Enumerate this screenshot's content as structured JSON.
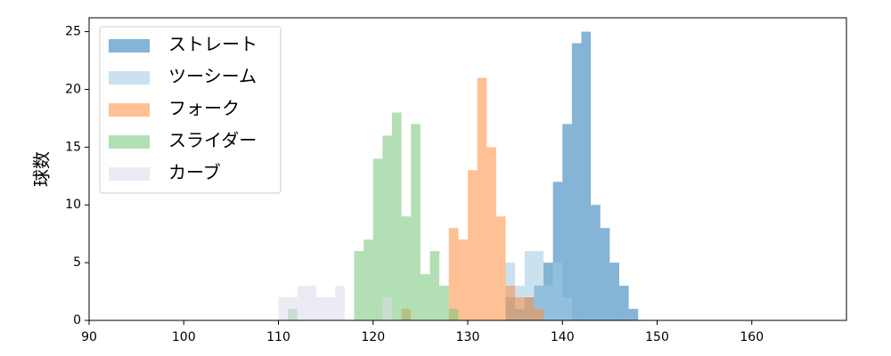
{
  "chart_data": {
    "type": "histogram",
    "ylabel": "球数",
    "xlim": [
      90,
      170
    ],
    "ylim": [
      0,
      26.2
    ],
    "xticks": [
      90,
      100,
      110,
      120,
      130,
      140,
      150,
      160
    ],
    "yticks": [
      0,
      5,
      10,
      15,
      20,
      25
    ],
    "legend": "upper left",
    "opacity": 0.55,
    "series": [
      {
        "name": "ストレート",
        "color": "#1f77b4",
        "bins": [
          134,
          135,
          136,
          137,
          138,
          139,
          140,
          141,
          142,
          143,
          144,
          145,
          146,
          147,
          148
        ],
        "values": [
          2,
          1,
          2,
          3,
          5,
          12,
          17,
          24,
          25,
          10,
          8,
          5,
          3,
          1
        ]
      },
      {
        "name": "ツーシーム",
        "color": "#9ecae1",
        "bins": [
          134,
          135,
          136,
          137,
          138,
          139,
          140,
          141
        ],
        "values": [
          5,
          3,
          6,
          6,
          3,
          5,
          2
        ]
      },
      {
        "name": "フォーク",
        "color": "#fd8d3c",
        "bins": [
          123,
          124,
          125,
          126,
          127,
          128,
          129,
          130,
          131,
          132,
          133,
          134,
          135,
          136,
          137,
          138
        ],
        "values": [
          1,
          0,
          0,
          0,
          0,
          8,
          7,
          13,
          21,
          15,
          9,
          3,
          2,
          2,
          1
        ]
      },
      {
        "name": "スライダー",
        "color": "#74c476",
        "bins": [
          111,
          112,
          113,
          114,
          115,
          116,
          117,
          118,
          119,
          120,
          121,
          122,
          123,
          124,
          125,
          126,
          127,
          128,
          129
        ],
        "values": [
          1,
          0,
          0,
          0,
          0,
          0,
          0,
          6,
          7,
          14,
          16,
          18,
          9,
          17,
          4,
          6,
          3,
          1
        ]
      },
      {
        "name": "カーブ",
        "color": "#dadaeb",
        "bins": [
          110,
          111,
          112,
          113,
          114,
          115,
          116,
          117,
          118,
          119,
          120,
          121,
          122
        ],
        "values": [
          2,
          2,
          3,
          3,
          2,
          2,
          3,
          0,
          0,
          0,
          0,
          2
        ]
      }
    ]
  }
}
